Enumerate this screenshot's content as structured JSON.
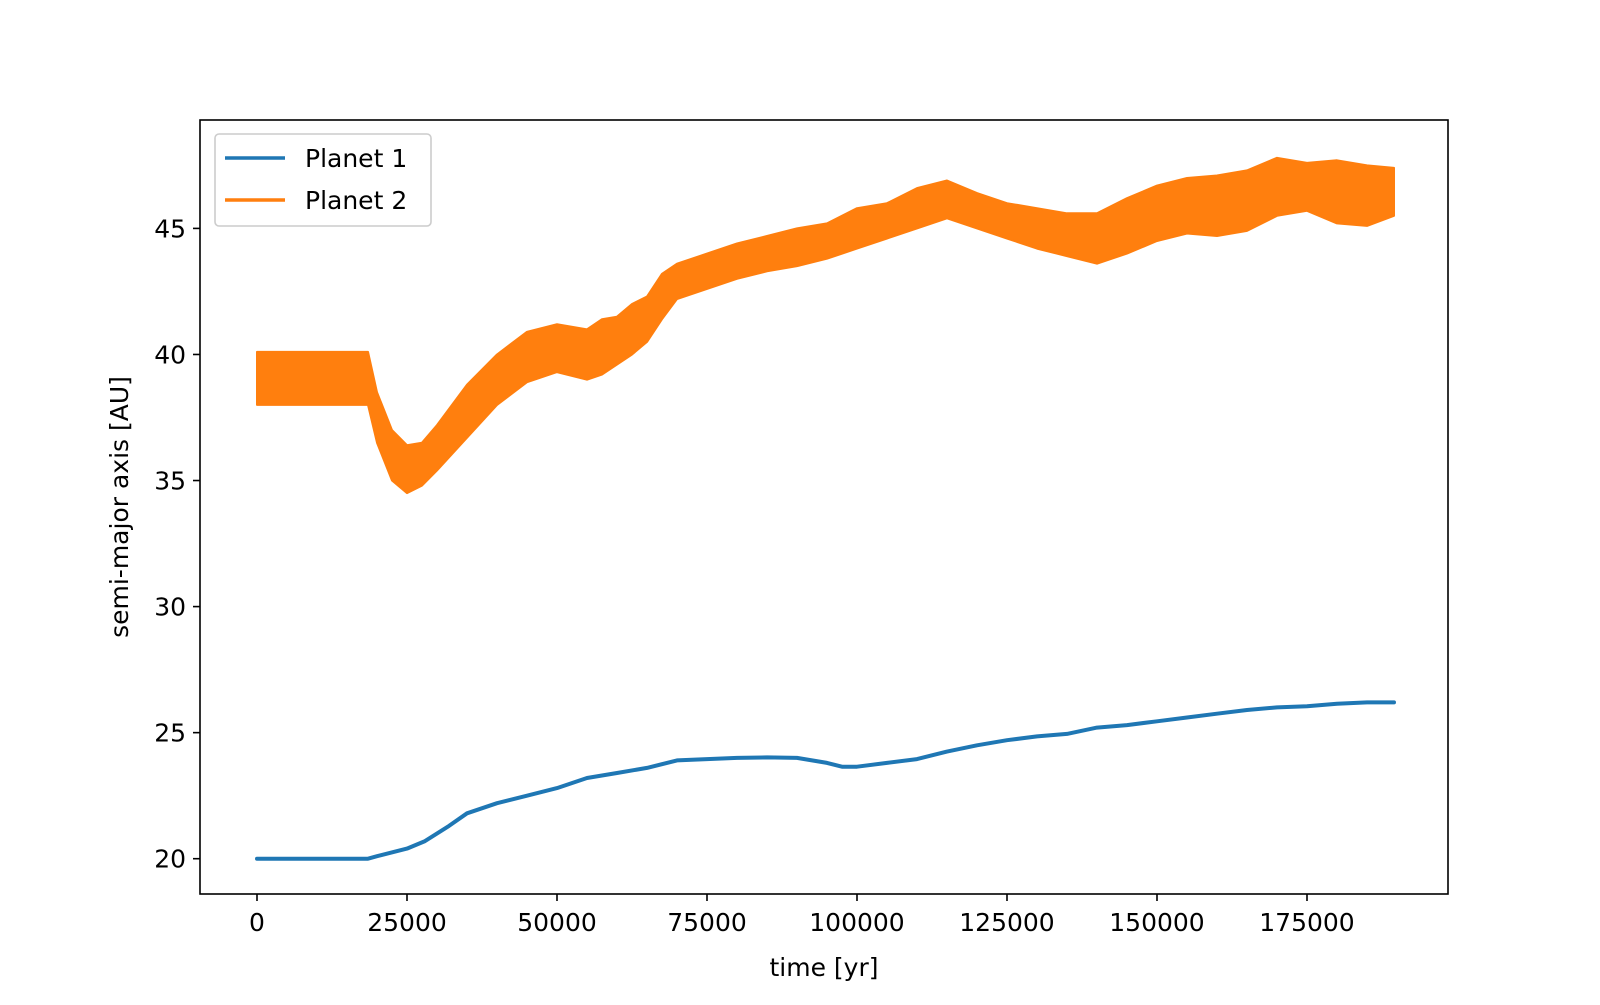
{
  "chart_data": {
    "type": "line",
    "title": "",
    "xlabel": "time [yr]",
    "ylabel": "semi-major axis [AU]",
    "xlim": [
      -9500,
      198500
    ],
    "ylim": [
      18.6,
      49.3
    ],
    "xticks": [
      0,
      25000,
      50000,
      75000,
      100000,
      125000,
      150000,
      175000
    ],
    "yticks": [
      20,
      25,
      30,
      35,
      40,
      45
    ],
    "grid": false,
    "legend_position": "top-left",
    "series": [
      {
        "name": "Planet 1",
        "color": "#1f77b4",
        "x": [
          0,
          10000,
          18500,
          20000,
          25000,
          28000,
          32000,
          35000,
          40000,
          45000,
          50000,
          55000,
          60000,
          65000,
          70000,
          75000,
          80000,
          85000,
          90000,
          95000,
          97500,
          100000,
          105000,
          110000,
          115000,
          120000,
          125000,
          130000,
          135000,
          140000,
          145000,
          150000,
          155000,
          160000,
          165000,
          170000,
          175000,
          180000,
          185000,
          189500
        ],
        "y": [
          20.0,
          20.0,
          20.0,
          20.1,
          20.4,
          20.7,
          21.3,
          21.8,
          22.2,
          22.5,
          22.8,
          23.2,
          23.4,
          23.6,
          23.9,
          23.95,
          24.0,
          24.02,
          24.0,
          23.8,
          23.65,
          23.65,
          23.8,
          23.95,
          24.25,
          24.5,
          24.7,
          24.85,
          24.95,
          25.2,
          25.3,
          25.45,
          25.6,
          25.75,
          25.9,
          26.0,
          26.05,
          26.15,
          26.2,
          26.2
        ]
      },
      {
        "name": "Planet 2",
        "color": "#ff7f0e",
        "x": [
          0,
          5000,
          10000,
          15000,
          17500,
          18500,
          20000,
          22500,
          25000,
          27500,
          30000,
          35000,
          40000,
          45000,
          50000,
          55000,
          57500,
          60000,
          62500,
          65000,
          67500,
          70000,
          75000,
          80000,
          85000,
          90000,
          95000,
          100000,
          105000,
          110000,
          115000,
          120000,
          125000,
          130000,
          135000,
          140000,
          145000,
          150000,
          155000,
          160000,
          165000,
          170000,
          175000,
          180000,
          185000,
          189500
        ],
        "y_upper": [
          40.1,
          40.1,
          40.1,
          40.1,
          40.1,
          40.1,
          38.5,
          37.0,
          36.4,
          36.5,
          37.2,
          38.8,
          40.0,
          40.9,
          41.2,
          41.0,
          41.4,
          41.5,
          42.0,
          42.3,
          43.2,
          43.6,
          44.0,
          44.4,
          44.7,
          45.0,
          45.2,
          45.8,
          46.0,
          46.6,
          46.9,
          46.4,
          46.0,
          45.8,
          45.6,
          45.6,
          46.2,
          46.7,
          47.0,
          47.1,
          47.3,
          47.8,
          47.6,
          47.7,
          47.5,
          47.4
        ],
        "y_lower": [
          38.0,
          38.0,
          38.0,
          38.0,
          38.0,
          38.0,
          36.5,
          35.0,
          34.5,
          34.8,
          35.4,
          36.7,
          38.0,
          38.9,
          39.3,
          39.0,
          39.2,
          39.6,
          40.0,
          40.5,
          41.4,
          42.2,
          42.6,
          43.0,
          43.3,
          43.5,
          43.8,
          44.2,
          44.6,
          45.0,
          45.4,
          45.0,
          44.6,
          44.2,
          43.9,
          43.6,
          44.0,
          44.5,
          44.8,
          44.7,
          44.9,
          45.5,
          45.7,
          45.2,
          45.1,
          45.5
        ]
      }
    ]
  }
}
